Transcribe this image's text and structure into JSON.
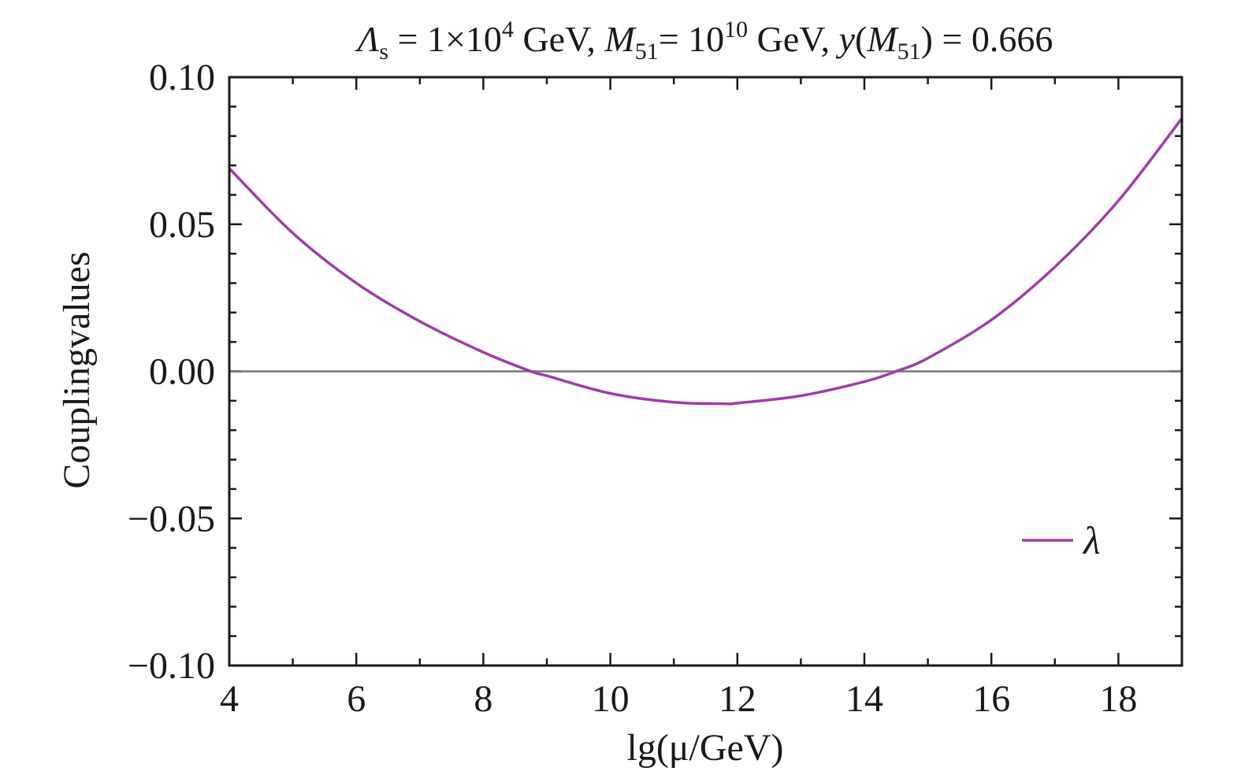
{
  "chart_data": {
    "type": "line",
    "title": {
      "parts": [
        {
          "text": "Λ",
          "style": "italic"
        },
        {
          "text": "s",
          "style": "sub"
        },
        {
          "text": " = 1×10",
          "style": "normal"
        },
        {
          "text": "4",
          "style": "sup"
        },
        {
          "text": " GeV, ",
          "style": "normal"
        },
        {
          "text": "M",
          "style": "italic"
        },
        {
          "text": "51",
          "style": "sub"
        },
        {
          "text": "= 10",
          "style": "normal"
        },
        {
          "text": "10",
          "style": "sup"
        },
        {
          "text": " GeV, ",
          "style": "normal"
        },
        {
          "text": "y",
          "style": "italic"
        },
        {
          "text": "(",
          "style": "normal"
        },
        {
          "text": "M",
          "style": "italic"
        },
        {
          "text": "51",
          "style": "sub"
        },
        {
          "text": ") = 0.666",
          "style": "normal"
        }
      ]
    },
    "xlabel": "lg(μ/GeV)",
    "ylabel": "Couplingvalues",
    "xlim": [
      4,
      19
    ],
    "ylim": [
      -0.1,
      0.1
    ],
    "xticks": [
      4,
      6,
      8,
      10,
      12,
      14,
      16,
      18
    ],
    "xtick_labels": [
      "4",
      "6",
      "8",
      "10",
      "12",
      "14",
      "16",
      "18"
    ],
    "yticks": [
      -0.1,
      -0.05,
      0,
      0.05,
      0.1
    ],
    "ytick_labels": [
      "−0.10",
      "−0.05",
      "0.00",
      "0.05",
      "0.10"
    ],
    "x_minor_step": 1,
    "y_minor_step": 0.01,
    "grid": false,
    "legend_position": "bottom-right",
    "reference_line": {
      "y": 0,
      "color": "#777777"
    },
    "series": [
      {
        "name": "λ",
        "color": "#9b3fa3",
        "x": [
          4,
          5,
          6,
          7,
          8,
          8.75,
          9,
          10,
          11,
          11.8,
          12,
          13,
          14,
          14.5,
          15,
          16,
          17,
          18,
          19
        ],
        "y": [
          0.069,
          0.047,
          0.03,
          0.017,
          0.0065,
          0.0,
          -0.0015,
          -0.0075,
          -0.0105,
          -0.011,
          -0.0108,
          -0.0083,
          -0.0035,
          0.0,
          0.0045,
          0.0175,
          0.0355,
          0.058,
          0.086
        ]
      }
    ]
  }
}
